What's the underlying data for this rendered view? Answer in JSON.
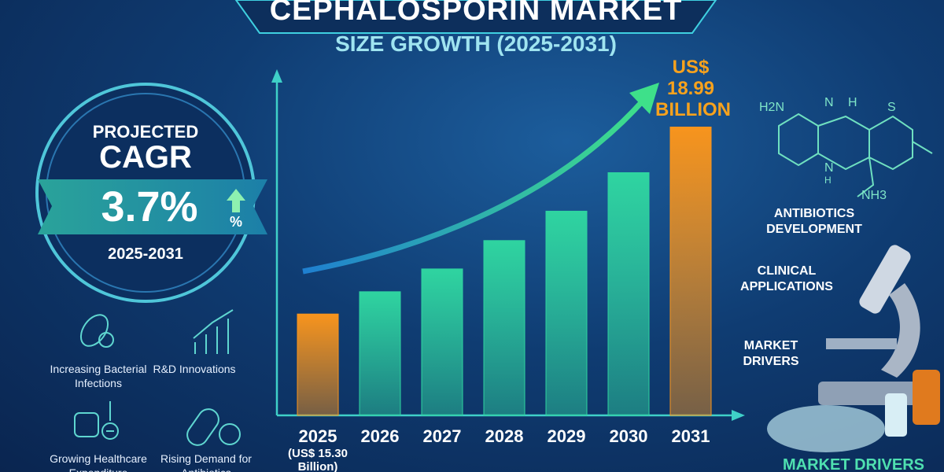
{
  "chart_data": {
    "type": "bar",
    "title": "CEPHALOSPORIN MARKET",
    "subtitle": "SIZE GROWTH (2025-2031)",
    "categories": [
      "2025",
      "2026",
      "2027",
      "2028",
      "2029",
      "2030",
      "2031"
    ],
    "values": [
      15.3,
      15.74,
      16.19,
      16.75,
      17.33,
      18.09,
      18.99
    ],
    "value_labels": [
      "(US$ 15.30 Billion)",
      null,
      null,
      null,
      null,
      null,
      "US$ 18.99 BILLION"
    ],
    "colors": [
      "#f7941d",
      "#2fd4a0",
      "#2fd4a0",
      "#2fd4a0",
      "#2fd4a0",
      "#2fd4a0",
      "#f7941d"
    ],
    "ylim": [
      13.3,
      19.2
    ]
  },
  "cagr": {
    "label_top": "PROJECTED",
    "label": "CAGR",
    "value": "3.7%",
    "unit": "%",
    "period": "2025-2031"
  },
  "drivers": [
    "Increasing Bacterial Infections",
    "R&D Innovations",
    "Growing Healthcare Expenditure",
    "Rising Demand for Antibiotics"
  ],
  "side_labels": [
    "ANTIBIOTICS DEVELOPMENT",
    "CLINICAL APPLICATIONS",
    "MARKET DRIVERS"
  ],
  "molecule": [
    "H2N",
    "N",
    "H",
    "S",
    "N",
    "H",
    "NH3"
  ],
  "footer": "MARKET DRIVERS"
}
